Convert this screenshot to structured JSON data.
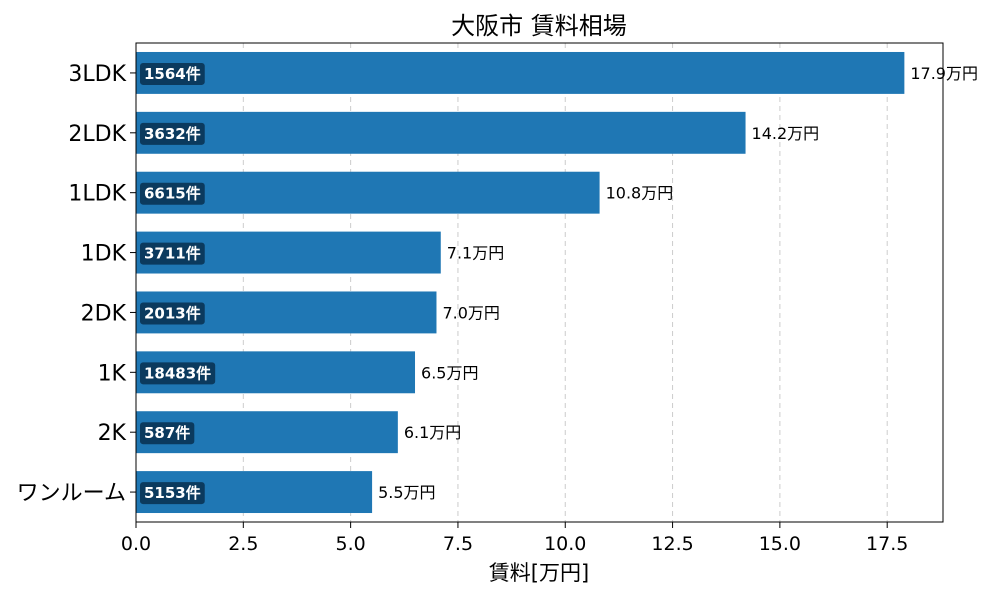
{
  "chart_data": {
    "type": "bar",
    "orientation": "horizontal",
    "title": "大阪市 賃料相場",
    "xlabel": "賃料[万円]",
    "ylabel": "",
    "xlim": [
      0,
      18.8
    ],
    "xticks": [
      "0.0",
      "2.5",
      "5.0",
      "7.5",
      "10.0",
      "12.5",
      "15.0",
      "17.5"
    ],
    "grid": "x-dashed",
    "bar_color": "#1f77b4",
    "count_badge_color": "#0b3a5e",
    "categories": [
      "3LDK",
      "2LDK",
      "1LDK",
      "1DK",
      "2DK",
      "1K",
      "2K",
      "ワンルーム"
    ],
    "values": [
      17.9,
      14.2,
      10.8,
      7.1,
      7.0,
      6.5,
      6.1,
      5.5
    ],
    "value_labels": [
      "17.9万円",
      "14.2万円",
      "10.8万円",
      "7.1万円",
      "7.0万円",
      "6.5万円",
      "6.1万円",
      "5.5万円"
    ],
    "count_labels": [
      "1564件",
      "3632件",
      "6615件",
      "3711件",
      "2013件",
      "18483件",
      "587件",
      "5153件"
    ]
  }
}
